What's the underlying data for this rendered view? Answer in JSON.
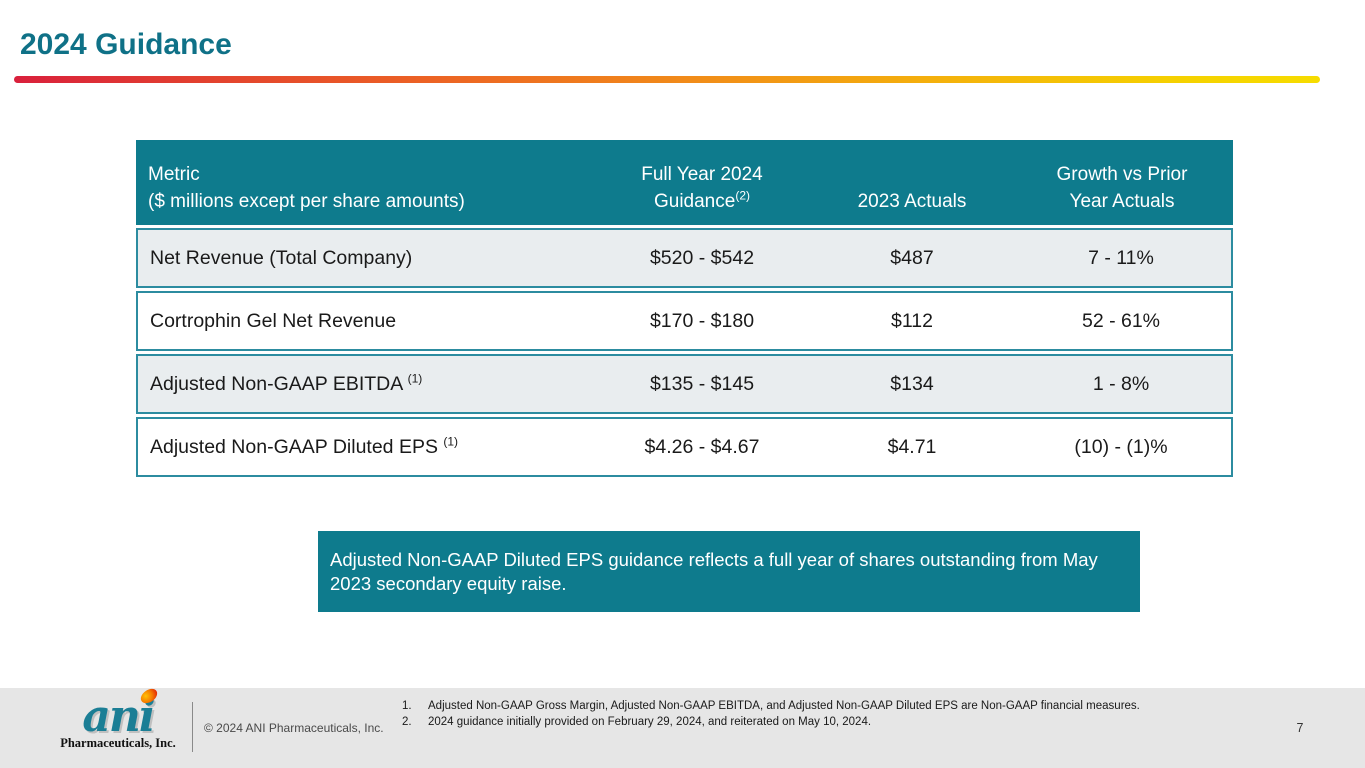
{
  "slide": {
    "title": "2024 Guidance"
  },
  "table": {
    "headers": [
      {
        "line1": "Metric",
        "line2": "($ millions except per share amounts)"
      },
      {
        "line1": "Full Year 2024",
        "line2": "Guidance",
        "superscript": "(2)"
      },
      {
        "line1": "2023 Actuals"
      },
      {
        "line1": "Growth vs Prior",
        "line2": "Year Actuals"
      }
    ],
    "rows": [
      {
        "metric": "Net Revenue (Total Company)",
        "superscript": "",
        "guidance": "$520 - $542",
        "actuals": "$487",
        "growth": "7 - 11%"
      },
      {
        "metric": "Cortrophin Gel Net Revenue",
        "superscript": "",
        "guidance": "$170 - $180",
        "actuals": "$112",
        "growth": "52 - 61%"
      },
      {
        "metric": "Adjusted Non-GAAP EBITDA ",
        "superscript": "(1)",
        "guidance": "$135 - $145",
        "actuals": "$134",
        "growth": "1 - 8%"
      },
      {
        "metric": "Adjusted Non-GAAP Diluted EPS ",
        "superscript": "(1)",
        "guidance": "$4.26 - $4.67",
        "actuals": "$4.71",
        "growth": "(10) - (1)%"
      }
    ]
  },
  "callout": {
    "text": "Adjusted Non-GAAP Diluted EPS guidance reflects a full year of shares outstanding from May 2023 secondary equity raise."
  },
  "footer": {
    "logo_text": "ani",
    "logo_subtext": "Pharmaceuticals, Inc.",
    "copyright": "© 2024 ANI Pharmaceuticals, Inc.",
    "footnotes": [
      {
        "num": "1.",
        "text": "Adjusted Non-GAAP Gross Margin, Adjusted Non-GAAP EBITDA, and Adjusted Non-GAAP Diluted EPS are Non-GAAP financial measures."
      },
      {
        "num": "2.",
        "text": "2024 guidance initially provided on February 29, 2024, and reiterated on May 10, 2024."
      }
    ],
    "page_number": "7"
  },
  "colors": {
    "teal_header": "#0E7B8D",
    "teal_border": "#2C8CA0",
    "title_teal": "#0F7187",
    "row_alt_bg": "#E9EDEF",
    "footer_bg": "#E6E6E6",
    "gradient_start": "#D9203C",
    "gradient_end": "#F6DC00",
    "logo_teal": "#1B7E95"
  }
}
